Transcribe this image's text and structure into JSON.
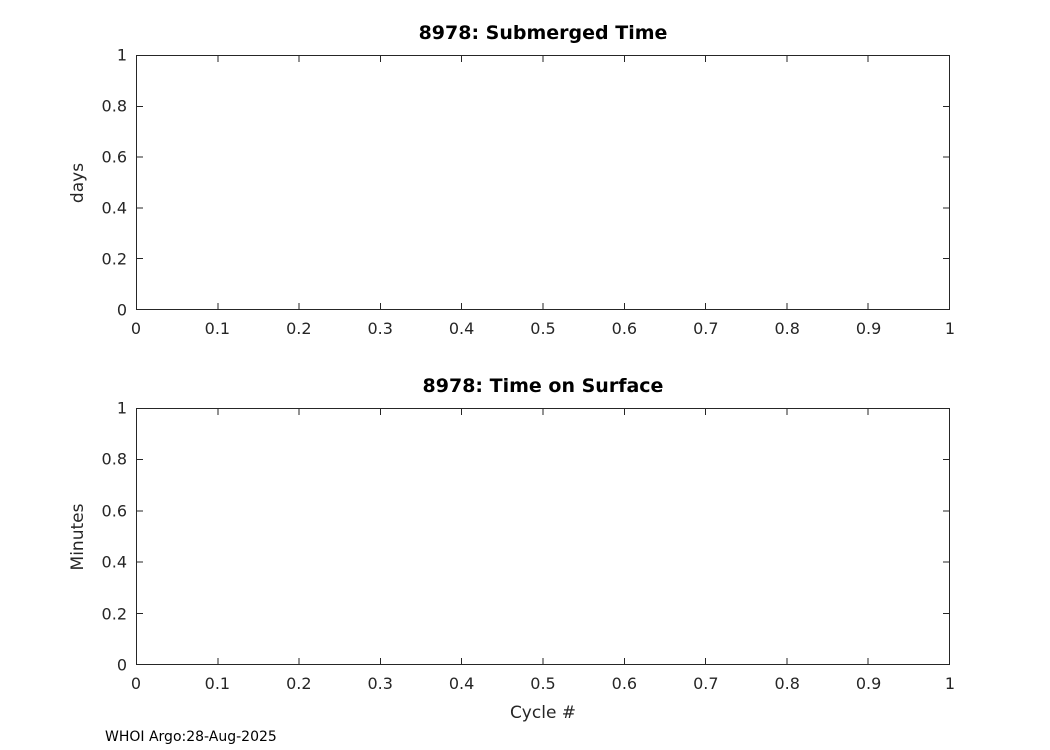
{
  "colors": {
    "axis": "#262626",
    "title": "#000000",
    "background": "#ffffff"
  },
  "footer": {
    "credit": "WHOI Argo:28-Aug-2025"
  },
  "chart_data": [
    {
      "type": "line",
      "title": "8978: Submerged Time",
      "xlabel": "",
      "ylabel": "days",
      "xlim": [
        0,
        1
      ],
      "ylim": [
        0,
        1
      ],
      "xticks": [
        0,
        0.1,
        0.2,
        0.3,
        0.4,
        0.5,
        0.6,
        0.7,
        0.8,
        0.9,
        1
      ],
      "xtick_labels": [
        "0",
        "0.1",
        "0.2",
        "0.3",
        "0.4",
        "0.5",
        "0.6",
        "0.7",
        "0.8",
        "0.9",
        "1"
      ],
      "yticks": [
        0,
        0.2,
        0.4,
        0.6,
        0.8,
        1
      ],
      "ytick_labels": [
        "0",
        "0.2",
        "0.4",
        "0.6",
        "0.8",
        "1"
      ],
      "grid": false,
      "legend": null,
      "series": []
    },
    {
      "type": "line",
      "title": "8978: Time on Surface",
      "xlabel": "Cycle #",
      "ylabel": "Minutes",
      "xlim": [
        0,
        1
      ],
      "ylim": [
        0,
        1
      ],
      "xticks": [
        0,
        0.1,
        0.2,
        0.3,
        0.4,
        0.5,
        0.6,
        0.7,
        0.8,
        0.9,
        1
      ],
      "xtick_labels": [
        "0",
        "0.1",
        "0.2",
        "0.3",
        "0.4",
        "0.5",
        "0.6",
        "0.7",
        "0.8",
        "0.9",
        "1"
      ],
      "yticks": [
        0,
        0.2,
        0.4,
        0.6,
        0.8,
        1
      ],
      "ytick_labels": [
        "0",
        "0.2",
        "0.4",
        "0.6",
        "0.8",
        "1"
      ],
      "grid": false,
      "legend": null,
      "series": []
    }
  ]
}
